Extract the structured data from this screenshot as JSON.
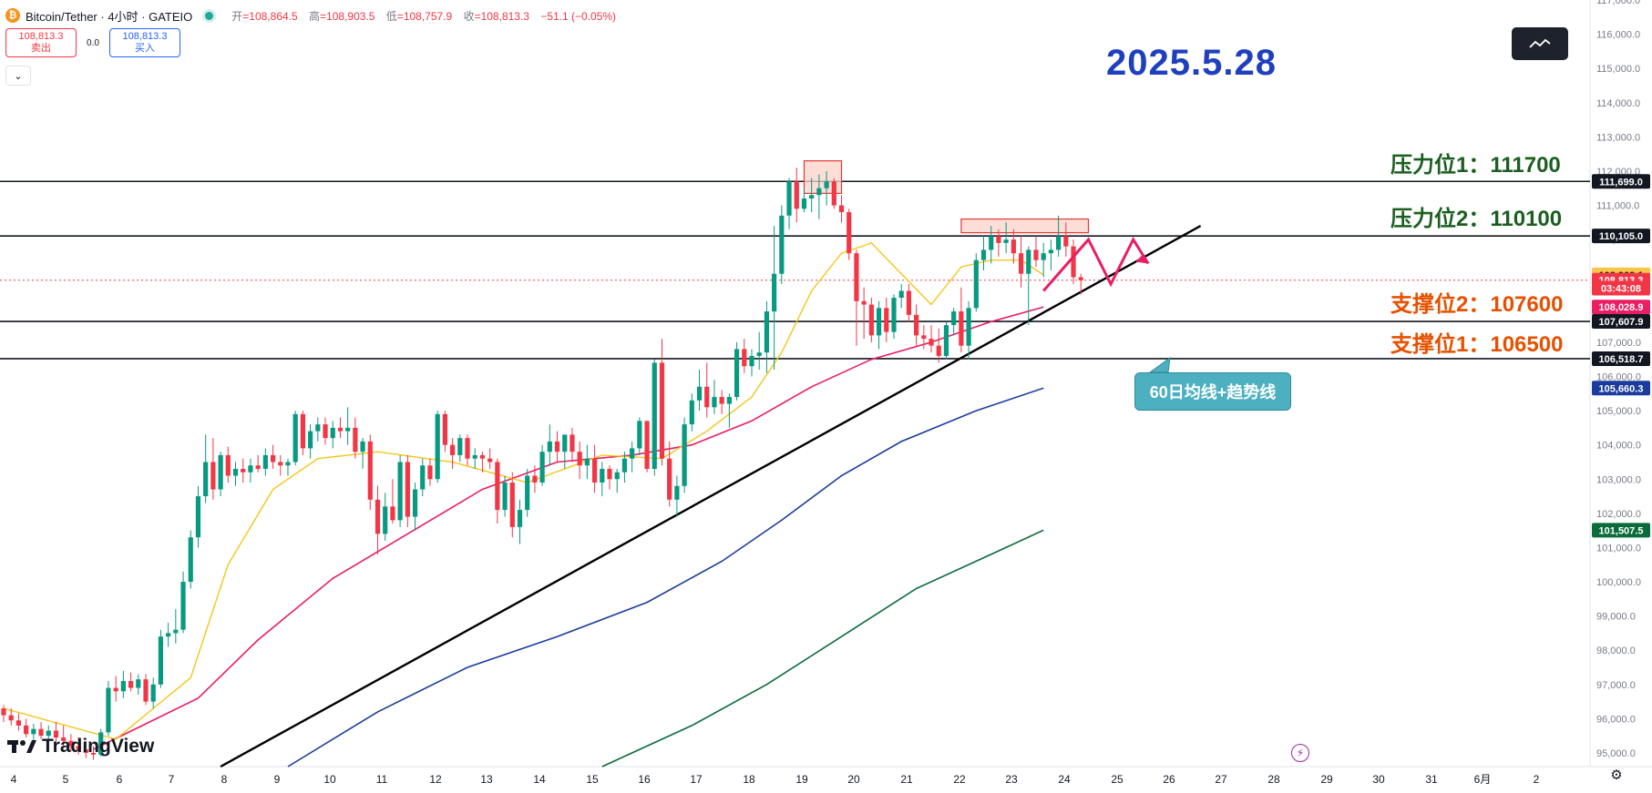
{
  "header": {
    "symbol": "Bitcoin/Tether · 4小时 · GATEIO",
    "open_label": "开",
    "open": "=108,864.5",
    "high_label": "高",
    "high": "=108,903.5",
    "low_label": "低",
    "low": "=108,757.9",
    "close_label": "收",
    "close": "=108,813.3",
    "change": "−51.1 (−0.05%)"
  },
  "trade": {
    "sell_price": "108,813.3",
    "sell_label": "卖出",
    "spread": "0.0",
    "buy_price": "108,813.3",
    "buy_label": "买入"
  },
  "title_date": "2025.5.28",
  "branding": "TradingView",
  "annotations": {
    "resistance1": "压力位1：111700",
    "resistance2": "压力位2：110100",
    "support2": "支撑位2：107600",
    "support1": "支撑位1：106500",
    "callout": "60日均线+趋势线"
  },
  "price_tags": [
    {
      "text": "111,699.0",
      "price": 111699,
      "bg": "#131722",
      "fg": "#ffffff"
    },
    {
      "text": "110,105.0",
      "price": 110105,
      "bg": "#131722",
      "fg": "#ffffff"
    },
    {
      "text": "108,968.1",
      "price": 108968.1,
      "bg": "#f7c548",
      "fg": "#131722"
    },
    {
      "text": "108,813.3",
      "price": 108813.3,
      "bg": "#f23645",
      "fg": "#ffffff"
    },
    {
      "text": "03:43:08",
      "price": 108580,
      "bg": "#f23645",
      "fg": "#ffffff"
    },
    {
      "text": "108,028.9",
      "price": 108028.9,
      "bg": "#e91e63",
      "fg": "#ffffff"
    },
    {
      "text": "107,607.9",
      "price": 107607.9,
      "bg": "#131722",
      "fg": "#ffffff"
    },
    {
      "text": "106,518.7",
      "price": 106518.7,
      "bg": "#131722",
      "fg": "#ffffff"
    },
    {
      "text": "105,660.3",
      "price": 105660.3,
      "bg": "#1a3c9c",
      "fg": "#ffffff"
    },
    {
      "text": "101,507.5",
      "price": 101507.5,
      "bg": "#0b6b3a",
      "fg": "#ffffff"
    }
  ],
  "colors": {
    "up": "#089981",
    "down": "#f23645",
    "ma_short": "#f5c518",
    "ma_mid": "#e91e63",
    "ma_long": "#1a3c9c",
    "ma_longest": "#0b6b3a",
    "trendline": "#000000",
    "zone_fill": "#fbd3c9",
    "zone_border": "#e53935"
  },
  "chart_data": {
    "type": "candlestick",
    "y_ticks": [
      "117,000.0",
      "116,000.0",
      "115,000.0",
      "114,000.0",
      "113,000.0",
      "112,000.0",
      "111,000.0",
      "110,000.0",
      "109,000.0",
      "108,000.0",
      "107,000.0",
      "106,000.0",
      "105,000.0",
      "104,000.0",
      "103,000.0",
      "102,000.0",
      "101,000.0",
      "100,000.0",
      "99,000.0",
      "98,000.0",
      "97,000.0",
      "96,000.0",
      "95,000.0"
    ],
    "ylim": [
      94600,
      117000
    ],
    "x_ticks": [
      "4",
      "5",
      "6",
      "7",
      "8",
      "9",
      "10",
      "11",
      "12",
      "13",
      "14",
      "15",
      "16",
      "17",
      "18",
      "19",
      "20",
      "21",
      "22",
      "23",
      "24",
      "25",
      "26",
      "27",
      "28",
      "29",
      "30",
      "31",
      "6月",
      "2"
    ],
    "horizontal_levels": [
      111699.0,
      110105.0,
      107607.9,
      106518.7
    ],
    "current_price": 108813.3,
    "candles": [
      [
        96300,
        96400,
        95900,
        96100
      ],
      [
        96100,
        96300,
        95800,
        95950
      ],
      [
        95950,
        96150,
        95650,
        95800
      ],
      [
        95800,
        96000,
        95450,
        95550
      ],
      [
        95550,
        95850,
        95300,
        95700
      ],
      [
        95700,
        95900,
        95400,
        95500
      ],
      [
        95500,
        95800,
        95200,
        95650
      ],
      [
        95650,
        95900,
        95300,
        95450
      ],
      [
        95450,
        95800,
        95200,
        95350
      ],
      [
        95350,
        95550,
        95050,
        95200
      ],
      [
        95200,
        95450,
        94950,
        95100
      ],
      [
        95100,
        95350,
        94850,
        95000
      ],
      [
        95000,
        95200,
        94800,
        94950
      ],
      [
        94950,
        95700,
        94900,
        95600
      ],
      [
        95600,
        97100,
        95500,
        96900
      ],
      [
        96900,
        97250,
        96500,
        96800
      ],
      [
        96800,
        97400,
        96600,
        97100
      ],
      [
        97100,
        97350,
        96800,
        96900
      ],
      [
        96900,
        97300,
        96700,
        97150
      ],
      [
        97150,
        97300,
        96400,
        96500
      ],
      [
        96500,
        97200,
        96300,
        97000
      ],
      [
        97000,
        98600,
        96900,
        98400
      ],
      [
        98400,
        98800,
        98100,
        98500
      ],
      [
        98500,
        99200,
        98200,
        98600
      ],
      [
        98600,
        100300,
        98500,
        100000
      ],
      [
        100000,
        101500,
        99800,
        101300
      ],
      [
        101300,
        102800,
        101000,
        102500
      ],
      [
        102500,
        104300,
        102300,
        103500
      ],
      [
        103500,
        104200,
        102400,
        102700
      ],
      [
        102700,
        103800,
        102500,
        103700
      ],
      [
        103700,
        103950,
        102900,
        103100
      ],
      [
        103100,
        103500,
        102800,
        103300
      ],
      [
        103300,
        103600,
        102900,
        103200
      ],
      [
        103200,
        103600,
        102900,
        103400
      ],
      [
        103400,
        103700,
        103200,
        103300
      ],
      [
        103300,
        103900,
        103100,
        103700
      ],
      [
        103700,
        104000,
        103300,
        103500
      ],
      [
        103500,
        103700,
        103100,
        103400
      ],
      [
        103400,
        103600,
        103100,
        103500
      ],
      [
        103500,
        105000,
        103400,
        104900
      ],
      [
        104900,
        105000,
        103700,
        103900
      ],
      [
        103900,
        104600,
        103600,
        104400
      ],
      [
        104400,
        104800,
        104100,
        104600
      ],
      [
        104600,
        104800,
        104000,
        104200
      ],
      [
        104200,
        104700,
        103900,
        104500
      ],
      [
        104500,
        104800,
        104200,
        104400
      ],
      [
        104400,
        105100,
        104000,
        104500
      ],
      [
        104500,
        104800,
        103600,
        103800
      ],
      [
        103800,
        104200,
        103300,
        104100
      ],
      [
        104100,
        104300,
        102100,
        102400
      ],
      [
        102400,
        102800,
        100800,
        101400
      ],
      [
        101400,
        102600,
        101200,
        102200
      ],
      [
        102200,
        103000,
        101700,
        101800
      ],
      [
        101800,
        103700,
        101600,
        103500
      ],
      [
        103500,
        103700,
        101600,
        101900
      ],
      [
        101900,
        102900,
        101500,
        102700
      ],
      [
        102700,
        103600,
        102500,
        103400
      ],
      [
        103400,
        103600,
        102800,
        103000
      ],
      [
        103000,
        105000,
        102900,
        104900
      ],
      [
        104900,
        105000,
        103800,
        104000
      ],
      [
        104000,
        104200,
        103300,
        103700
      ],
      [
        103700,
        104300,
        103500,
        104200
      ],
      [
        104200,
        104300,
        103400,
        103600
      ],
      [
        103600,
        103900,
        103300,
        103700
      ],
      [
        103700,
        103800,
        103200,
        103600
      ],
      [
        103600,
        103900,
        103300,
        103500
      ],
      [
        103500,
        103600,
        101700,
        102100
      ],
      [
        102100,
        103100,
        101900,
        102900
      ],
      [
        102900,
        103200,
        101300,
        101600
      ],
      [
        101600,
        102400,
        101100,
        102100
      ],
      [
        102100,
        103300,
        101900,
        103100
      ],
      [
        103100,
        103400,
        102600,
        102900
      ],
      [
        102900,
        104000,
        102800,
        103800
      ],
      [
        103800,
        104600,
        103400,
        104100
      ],
      [
        104100,
        104400,
        103500,
        103800
      ],
      [
        103800,
        104300,
        103300,
        104300
      ],
      [
        104300,
        104500,
        103500,
        103800
      ],
      [
        103800,
        104100,
        103000,
        103400
      ],
      [
        103400,
        104000,
        103000,
        103600
      ],
      [
        103600,
        104000,
        102600,
        102900
      ],
      [
        102900,
        103500,
        102500,
        103300
      ],
      [
        103300,
        103400,
        102700,
        103000
      ],
      [
        103000,
        103300,
        102600,
        103200
      ],
      [
        103200,
        103800,
        102900,
        103600
      ],
      [
        103600,
        104100,
        103200,
        103900
      ],
      [
        103900,
        104800,
        103700,
        104700
      ],
      [
        104700,
        104700,
        103200,
        103300
      ],
      [
        103300,
        106500,
        103100,
        106400
      ],
      [
        106400,
        107100,
        103400,
        103600
      ],
      [
        103600,
        104100,
        102200,
        102400
      ],
      [
        102400,
        103100,
        101900,
        102800
      ],
      [
        102800,
        104800,
        102600,
        104600
      ],
      [
        104600,
        105500,
        104400,
        105300
      ],
      [
        105300,
        106200,
        105000,
        105700
      ],
      [
        105700,
        106400,
        104800,
        105100
      ],
      [
        105100,
        105900,
        104900,
        105400
      ],
      [
        105400,
        105600,
        104900,
        105200
      ],
      [
        105200,
        105500,
        104500,
        105400
      ],
      [
        105400,
        107000,
        105300,
        106800
      ],
      [
        106800,
        107100,
        106100,
        106300
      ],
      [
        106300,
        106800,
        106000,
        106600
      ],
      [
        106600,
        107300,
        106200,
        106700
      ],
      [
        106700,
        108200,
        106100,
        107900
      ],
      [
        107900,
        110400,
        106200,
        109000
      ],
      [
        109000,
        111000,
        108700,
        110700
      ],
      [
        110700,
        111800,
        110300,
        111700
      ],
      [
        111700,
        112100,
        110500,
        110900
      ],
      [
        110900,
        111500,
        110800,
        111200
      ],
      [
        111200,
        111800,
        110800,
        111300
      ],
      [
        111300,
        111900,
        110600,
        111500
      ],
      [
        111500,
        112000,
        111000,
        111700
      ],
      [
        111700,
        111800,
        110900,
        111000
      ],
      [
        111000,
        111300,
        110500,
        110800
      ],
      [
        110800,
        110900,
        109400,
        109600
      ],
      [
        109600,
        109700,
        106900,
        108200
      ],
      [
        108200,
        108600,
        107100,
        108100
      ],
      [
        108100,
        108300,
        107000,
        107200
      ],
      [
        107200,
        108200,
        106800,
        108000
      ],
      [
        108000,
        108300,
        107000,
        107300
      ],
      [
        107300,
        108400,
        107100,
        108300
      ],
      [
        108300,
        108700,
        108000,
        108500
      ],
      [
        108500,
        108700,
        107600,
        107800
      ],
      [
        107800,
        108100,
        106900,
        107200
      ],
      [
        107200,
        107500,
        106800,
        107100
      ],
      [
        107100,
        107500,
        106700,
        106900
      ],
      [
        106900,
        107400,
        106400,
        106600
      ],
      [
        106600,
        107600,
        106500,
        107500
      ],
      [
        107500,
        108000,
        107200,
        107900
      ],
      [
        107900,
        108600,
        106700,
        106900
      ],
      [
        106900,
        108200,
        106500,
        108000
      ],
      [
        108000,
        109600,
        107900,
        109400
      ],
      [
        109400,
        110100,
        109100,
        109700
      ],
      [
        109700,
        110400,
        109300,
        110100
      ],
      [
        110100,
        110300,
        109500,
        109900
      ],
      [
        109900,
        110500,
        109600,
        110000
      ],
      [
        110000,
        110300,
        109300,
        109600
      ],
      [
        109600,
        110100,
        108600,
        109000
      ],
      [
        109000,
        109800,
        107500,
        109700
      ],
      [
        109700,
        110100,
        109200,
        109400
      ],
      [
        109400,
        109900,
        108900,
        109600
      ],
      [
        109600,
        110000,
        109100,
        109700
      ],
      [
        109700,
        110700,
        109500,
        110100
      ],
      [
        110100,
        110500,
        109500,
        109800
      ],
      [
        109800,
        110000,
        108700,
        108900
      ],
      [
        108900,
        109000,
        108400,
        108813.3
      ]
    ],
    "ma_short": [
      [
        0,
        96300
      ],
      [
        15,
        95400
      ],
      [
        25,
        97200
      ],
      [
        30,
        100500
      ],
      [
        36,
        102700
      ],
      [
        42,
        103600
      ],
      [
        50,
        103800
      ],
      [
        60,
        103500
      ],
      [
        70,
        102900
      ],
      [
        80,
        103700
      ],
      [
        88,
        103600
      ],
      [
        94,
        104400
      ],
      [
        100,
        105400
      ],
      [
        104,
        106700
      ],
      [
        108,
        108500
      ],
      [
        112,
        109600
      ],
      [
        116,
        109900
      ],
      [
        120,
        109000
      ],
      [
        124,
        108100
      ],
      [
        128,
        109200
      ],
      [
        132,
        109400
      ],
      [
        136,
        109400
      ],
      [
        139,
        108968
      ]
    ],
    "ma_mid": [
      [
        12,
        95100
      ],
      [
        26,
        96600
      ],
      [
        34,
        98300
      ],
      [
        44,
        100100
      ],
      [
        54,
        101400
      ],
      [
        64,
        102700
      ],
      [
        74,
        103500
      ],
      [
        84,
        103700
      ],
      [
        92,
        104000
      ],
      [
        100,
        104700
      ],
      [
        108,
        105700
      ],
      [
        116,
        106500
      ],
      [
        124,
        107000
      ],
      [
        132,
        107600
      ],
      [
        139,
        108029
      ]
    ],
    "ma_long": [
      [
        38,
        94600
      ],
      [
        50,
        96200
      ],
      [
        62,
        97500
      ],
      [
        74,
        98400
      ],
      [
        86,
        99400
      ],
      [
        96,
        100600
      ],
      [
        104,
        101800
      ],
      [
        112,
        103100
      ],
      [
        120,
        104100
      ],
      [
        130,
        105000
      ],
      [
        139,
        105660
      ]
    ],
    "ma_longest": [
      [
        80,
        94600
      ],
      [
        92,
        95800
      ],
      [
        102,
        97000
      ],
      [
        112,
        98400
      ],
      [
        122,
        99800
      ],
      [
        132,
        100800
      ],
      [
        139,
        101508
      ]
    ],
    "trendline": [
      [
        29,
        94600
      ],
      [
        160,
        110400
      ]
    ],
    "zones": [
      [
        107,
        112,
        111350,
        112300
      ],
      [
        128,
        145,
        110200,
        110600
      ]
    ],
    "projection": [
      [
        139,
        108500
      ],
      [
        145,
        110000
      ],
      [
        148,
        108700
      ],
      [
        151,
        110000
      ],
      [
        153,
        109300
      ]
    ]
  }
}
